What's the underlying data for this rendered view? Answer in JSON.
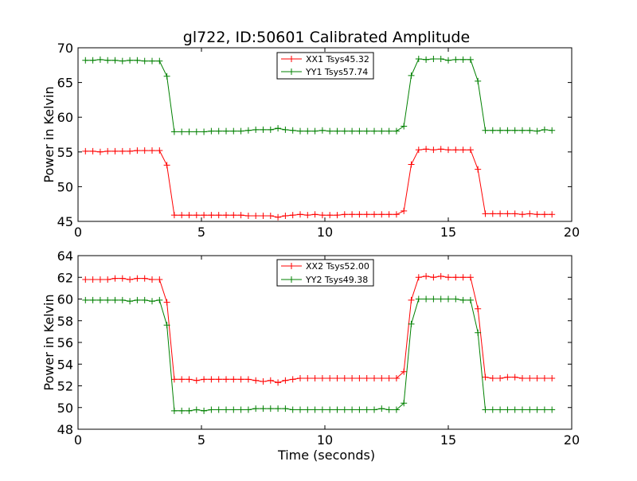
{
  "chart_data": [
    {
      "type": "line",
      "title": "gl722, ID:50601 Calibrated Amplitude",
      "xlabel": "",
      "ylabel": "Power in Kelvin",
      "xlim": [
        0,
        20
      ],
      "ylim": [
        45,
        70
      ],
      "xticks": [
        0,
        5,
        10,
        15,
        20
      ],
      "yticks": [
        45,
        50,
        55,
        60,
        65,
        70
      ],
      "grid": false,
      "legend_position": "top-center",
      "x": [
        0.3,
        0.6,
        0.9,
        1.2,
        1.5,
        1.8,
        2.1,
        2.4,
        2.7,
        3.0,
        3.3,
        3.6,
        3.9,
        4.2,
        4.5,
        4.8,
        5.1,
        5.4,
        5.7,
        6.0,
        6.3,
        6.6,
        6.9,
        7.2,
        7.5,
        7.8,
        8.1,
        8.4,
        8.7,
        9.0,
        9.3,
        9.6,
        9.9,
        10.2,
        10.5,
        10.8,
        11.1,
        11.4,
        11.7,
        12.0,
        12.3,
        12.6,
        12.9,
        13.2,
        13.5,
        13.8,
        14.1,
        14.4,
        14.7,
        15.0,
        15.3,
        15.6,
        15.9,
        16.2,
        16.5,
        16.8,
        17.1,
        17.4,
        17.7,
        18.0,
        18.3,
        18.6,
        18.9,
        19.2
      ],
      "series": [
        {
          "name": "XX1 Tsys45.32",
          "color": "#ff0000",
          "values": [
            55.1,
            55.1,
            55.0,
            55.1,
            55.1,
            55.1,
            55.1,
            55.2,
            55.2,
            55.2,
            55.2,
            53.1,
            45.9,
            45.9,
            45.9,
            45.9,
            45.9,
            45.9,
            45.9,
            45.9,
            45.9,
            45.9,
            45.8,
            45.8,
            45.8,
            45.8,
            45.6,
            45.8,
            45.9,
            46.0,
            45.9,
            46.0,
            45.9,
            45.9,
            45.9,
            46.0,
            46.0,
            46.0,
            46.0,
            46.0,
            46.0,
            46.0,
            46.0,
            46.5,
            53.2,
            55.3,
            55.4,
            55.3,
            55.4,
            55.3,
            55.3,
            55.3,
            55.3,
            52.5,
            46.1,
            46.1,
            46.1,
            46.1,
            46.1,
            46.0,
            46.1,
            46.0,
            46.0,
            46.0
          ]
        },
        {
          "name": "YY1 Tsys57.74",
          "color": "#008000",
          "values": [
            68.2,
            68.2,
            68.3,
            68.2,
            68.2,
            68.1,
            68.2,
            68.2,
            68.1,
            68.1,
            68.1,
            65.9,
            57.9,
            57.9,
            57.9,
            57.9,
            57.9,
            58.0,
            58.0,
            58.0,
            58.0,
            58.0,
            58.1,
            58.2,
            58.2,
            58.2,
            58.4,
            58.2,
            58.1,
            58.0,
            58.0,
            58.0,
            58.1,
            58.0,
            58.0,
            58.0,
            58.0,
            58.0,
            58.0,
            58.0,
            58.0,
            58.0,
            58.0,
            58.7,
            66.0,
            68.4,
            68.3,
            68.4,
            68.4,
            68.2,
            68.3,
            68.3,
            68.3,
            65.2,
            58.1,
            58.1,
            58.1,
            58.1,
            58.1,
            58.1,
            58.1,
            58.0,
            58.2,
            58.1
          ]
        }
      ]
    },
    {
      "type": "line",
      "title": "",
      "xlabel": "Time (seconds)",
      "ylabel": "Power in Kelvin",
      "xlim": [
        0,
        20
      ],
      "ylim": [
        48,
        64
      ],
      "xticks": [
        0,
        5,
        10,
        15,
        20
      ],
      "yticks": [
        48,
        50,
        52,
        54,
        56,
        58,
        60,
        62,
        64
      ],
      "grid": false,
      "legend_position": "top-center",
      "x": [
        0.3,
        0.6,
        0.9,
        1.2,
        1.5,
        1.8,
        2.1,
        2.4,
        2.7,
        3.0,
        3.3,
        3.6,
        3.9,
        4.2,
        4.5,
        4.8,
        5.1,
        5.4,
        5.7,
        6.0,
        6.3,
        6.6,
        6.9,
        7.2,
        7.5,
        7.8,
        8.1,
        8.4,
        8.7,
        9.0,
        9.3,
        9.6,
        9.9,
        10.2,
        10.5,
        10.8,
        11.1,
        11.4,
        11.7,
        12.0,
        12.3,
        12.6,
        12.9,
        13.2,
        13.5,
        13.8,
        14.1,
        14.4,
        14.7,
        15.0,
        15.3,
        15.6,
        15.9,
        16.2,
        16.5,
        16.8,
        17.1,
        17.4,
        17.7,
        18.0,
        18.3,
        18.6,
        18.9,
        19.2
      ],
      "series": [
        {
          "name": "XX2 Tsys52.00",
          "color": "#ff0000",
          "values": [
            61.8,
            61.8,
            61.8,
            61.8,
            61.9,
            61.9,
            61.8,
            61.9,
            61.9,
            61.8,
            61.8,
            59.7,
            52.6,
            52.6,
            52.6,
            52.5,
            52.6,
            52.6,
            52.6,
            52.6,
            52.6,
            52.6,
            52.6,
            52.5,
            52.4,
            52.5,
            52.3,
            52.5,
            52.6,
            52.7,
            52.7,
            52.7,
            52.7,
            52.7,
            52.7,
            52.7,
            52.7,
            52.7,
            52.7,
            52.7,
            52.7,
            52.7,
            52.7,
            53.3,
            59.9,
            62.0,
            62.1,
            62.0,
            62.1,
            62.0,
            62.0,
            62.0,
            62.0,
            59.1,
            52.8,
            52.7,
            52.7,
            52.8,
            52.8,
            52.7,
            52.7,
            52.7,
            52.7,
            52.7
          ]
        },
        {
          "name": "YY2 Tsys49.38",
          "color": "#008000",
          "values": [
            59.9,
            59.9,
            59.9,
            59.9,
            59.9,
            59.9,
            59.8,
            59.9,
            59.9,
            59.8,
            59.9,
            57.6,
            49.7,
            49.7,
            49.7,
            49.8,
            49.7,
            49.8,
            49.8,
            49.8,
            49.8,
            49.8,
            49.8,
            49.9,
            49.9,
            49.9,
            49.9,
            49.9,
            49.8,
            49.8,
            49.8,
            49.8,
            49.8,
            49.8,
            49.8,
            49.8,
            49.8,
            49.8,
            49.8,
            49.8,
            49.9,
            49.8,
            49.8,
            50.4,
            57.7,
            60.0,
            60.0,
            60.0,
            60.0,
            60.0,
            60.0,
            59.9,
            59.9,
            56.9,
            49.8,
            49.8,
            49.8,
            49.8,
            49.8,
            49.8,
            49.8,
            49.8,
            49.8,
            49.8
          ]
        }
      ]
    }
  ]
}
